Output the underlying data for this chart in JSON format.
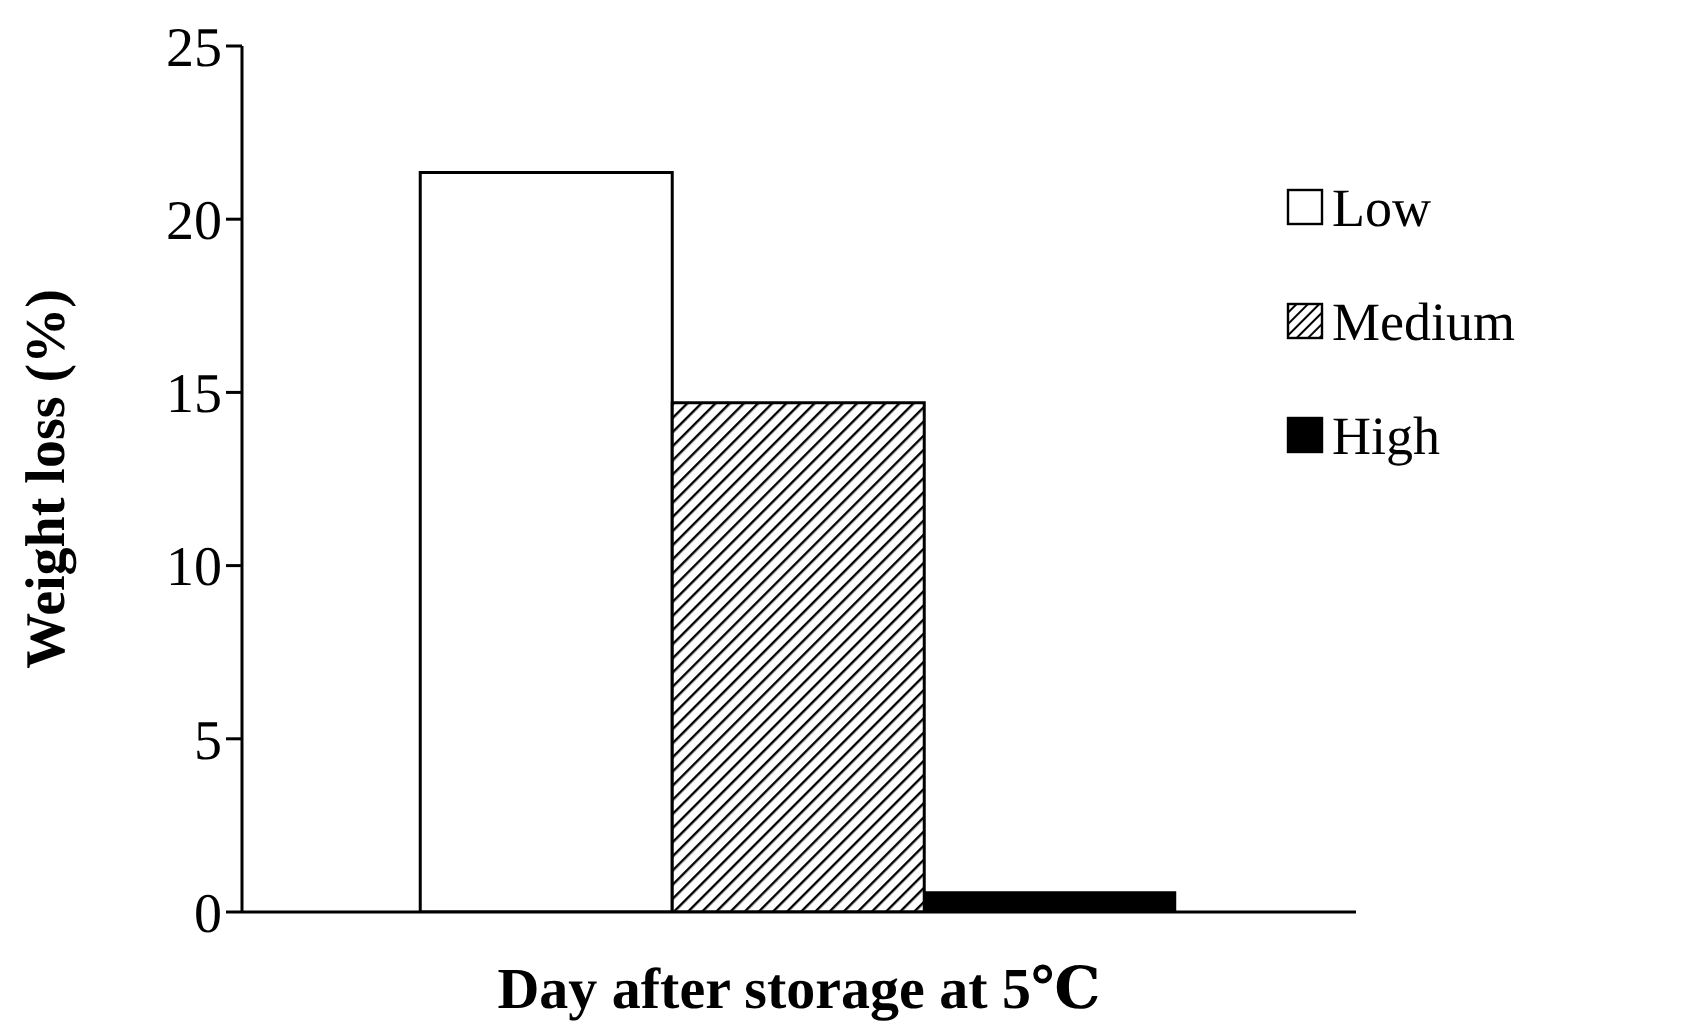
{
  "chart_data": {
    "type": "bar",
    "xlabel": "Day after storage at 5℃",
    "ylabel": "Weight loss (%)",
    "categories": [
      null
    ],
    "series": [
      {
        "name": "Low",
        "color": "#ffffff",
        "values": [
          21.35
        ]
      },
      {
        "name": "Medium",
        "color": "#000000",
        "values": [
          14.7
        ]
      },
      {
        "name": "High",
        "color": "#000000",
        "values": [
          0.6
        ]
      }
    ],
    "ylim": [
      0,
      25
    ],
    "yticks": [
      0,
      5,
      10,
      15,
      20,
      25
    ],
    "legend": "top right"
  }
}
